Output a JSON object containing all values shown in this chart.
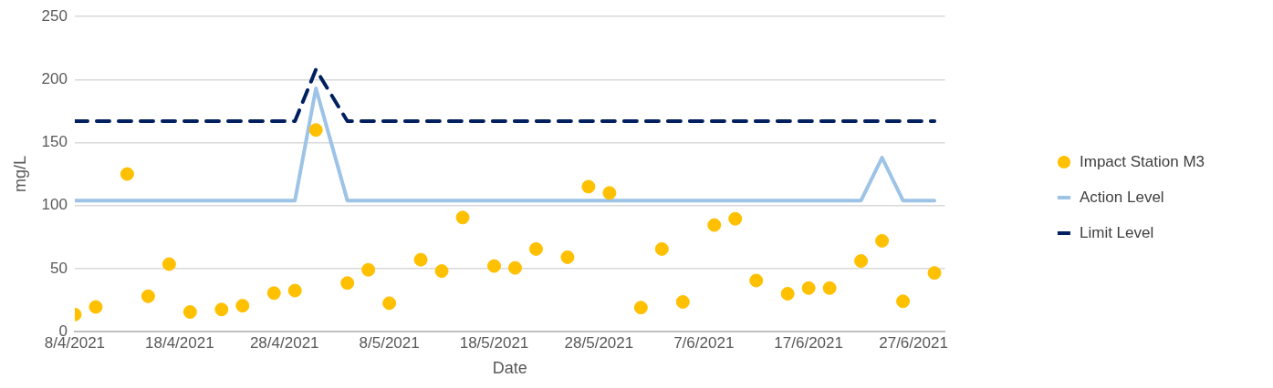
{
  "chart_data": {
    "type": "scatter",
    "xlabel": "Date",
    "ylabel": "mg/L",
    "x": [
      "2021-04-08",
      "2021-04-10",
      "2021-04-13",
      "2021-04-15",
      "2021-04-17",
      "2021-04-19",
      "2021-04-22",
      "2021-04-24",
      "2021-04-27",
      "2021-04-29",
      "2021-05-01",
      "2021-05-04",
      "2021-05-06",
      "2021-05-08",
      "2021-05-11",
      "2021-05-13",
      "2021-05-15",
      "2021-05-18",
      "2021-05-20",
      "2021-05-22",
      "2021-05-25",
      "2021-05-27",
      "2021-05-29",
      "2021-06-01",
      "2021-06-03",
      "2021-06-05",
      "2021-06-08",
      "2021-06-10",
      "2021-06-12",
      "2021-06-15",
      "2021-06-17",
      "2021-06-19",
      "2021-06-22",
      "2021-06-24",
      "2021-06-26",
      "2021-06-29"
    ],
    "series": [
      {
        "name": "Impact Station M3",
        "color": "#ffc000",
        "marker": "circle",
        "values": [
          13.5,
          19.5,
          125,
          28,
          53.5,
          15.5,
          17.5,
          20.5,
          30.5,
          32.5,
          160,
          38.5,
          49,
          22.5,
          57,
          48,
          90.5,
          52,
          50.5,
          65.5,
          59,
          115,
          110,
          19,
          65.5,
          23.5,
          84.5,
          89.5,
          40.5,
          30,
          34.5,
          34.5,
          56,
          72,
          24,
          46.5
        ]
      },
      {
        "name": "Action Level",
        "type": "line",
        "color": "#9dc3e6",
        "line_style": "solid",
        "marker": "none",
        "x": [
          "2021-04-08",
          "2021-04-29",
          "2021-05-01",
          "2021-05-04",
          "2021-06-22",
          "2021-06-24",
          "2021-06-26",
          "2021-06-29"
        ],
        "values": [
          104,
          104,
          193,
          104,
          104,
          138,
          104,
          104
        ]
      },
      {
        "name": "Limit Level",
        "type": "line",
        "color": "#002060",
        "line_style": "dashed",
        "marker": "none",
        "x": [
          "2021-04-08",
          "2021-04-29",
          "2021-05-01",
          "2021-05-04",
          "2021-06-29"
        ],
        "values": [
          167,
          167,
          208,
          167,
          167
        ]
      }
    ],
    "xlim": [
      "2021-04-08",
      "2021-06-30"
    ],
    "xticks": [
      {
        "value": "2021-04-08",
        "label": "8/4/2021"
      },
      {
        "value": "2021-04-18",
        "label": "18/4/2021"
      },
      {
        "value": "2021-04-28",
        "label": "28/4/2021"
      },
      {
        "value": "2021-05-08",
        "label": "8/5/2021"
      },
      {
        "value": "2021-05-18",
        "label": "18/5/2021"
      },
      {
        "value": "2021-05-28",
        "label": "28/5/2021"
      },
      {
        "value": "2021-06-07",
        "label": "7/6/2021"
      },
      {
        "value": "2021-06-17",
        "label": "17/6/2021"
      },
      {
        "value": "2021-06-27",
        "label": "27/6/2021"
      }
    ],
    "ylim": [
      0,
      250
    ],
    "yticks": [
      0,
      50,
      100,
      150,
      200,
      250
    ],
    "grid": "y",
    "legend": "right"
  }
}
